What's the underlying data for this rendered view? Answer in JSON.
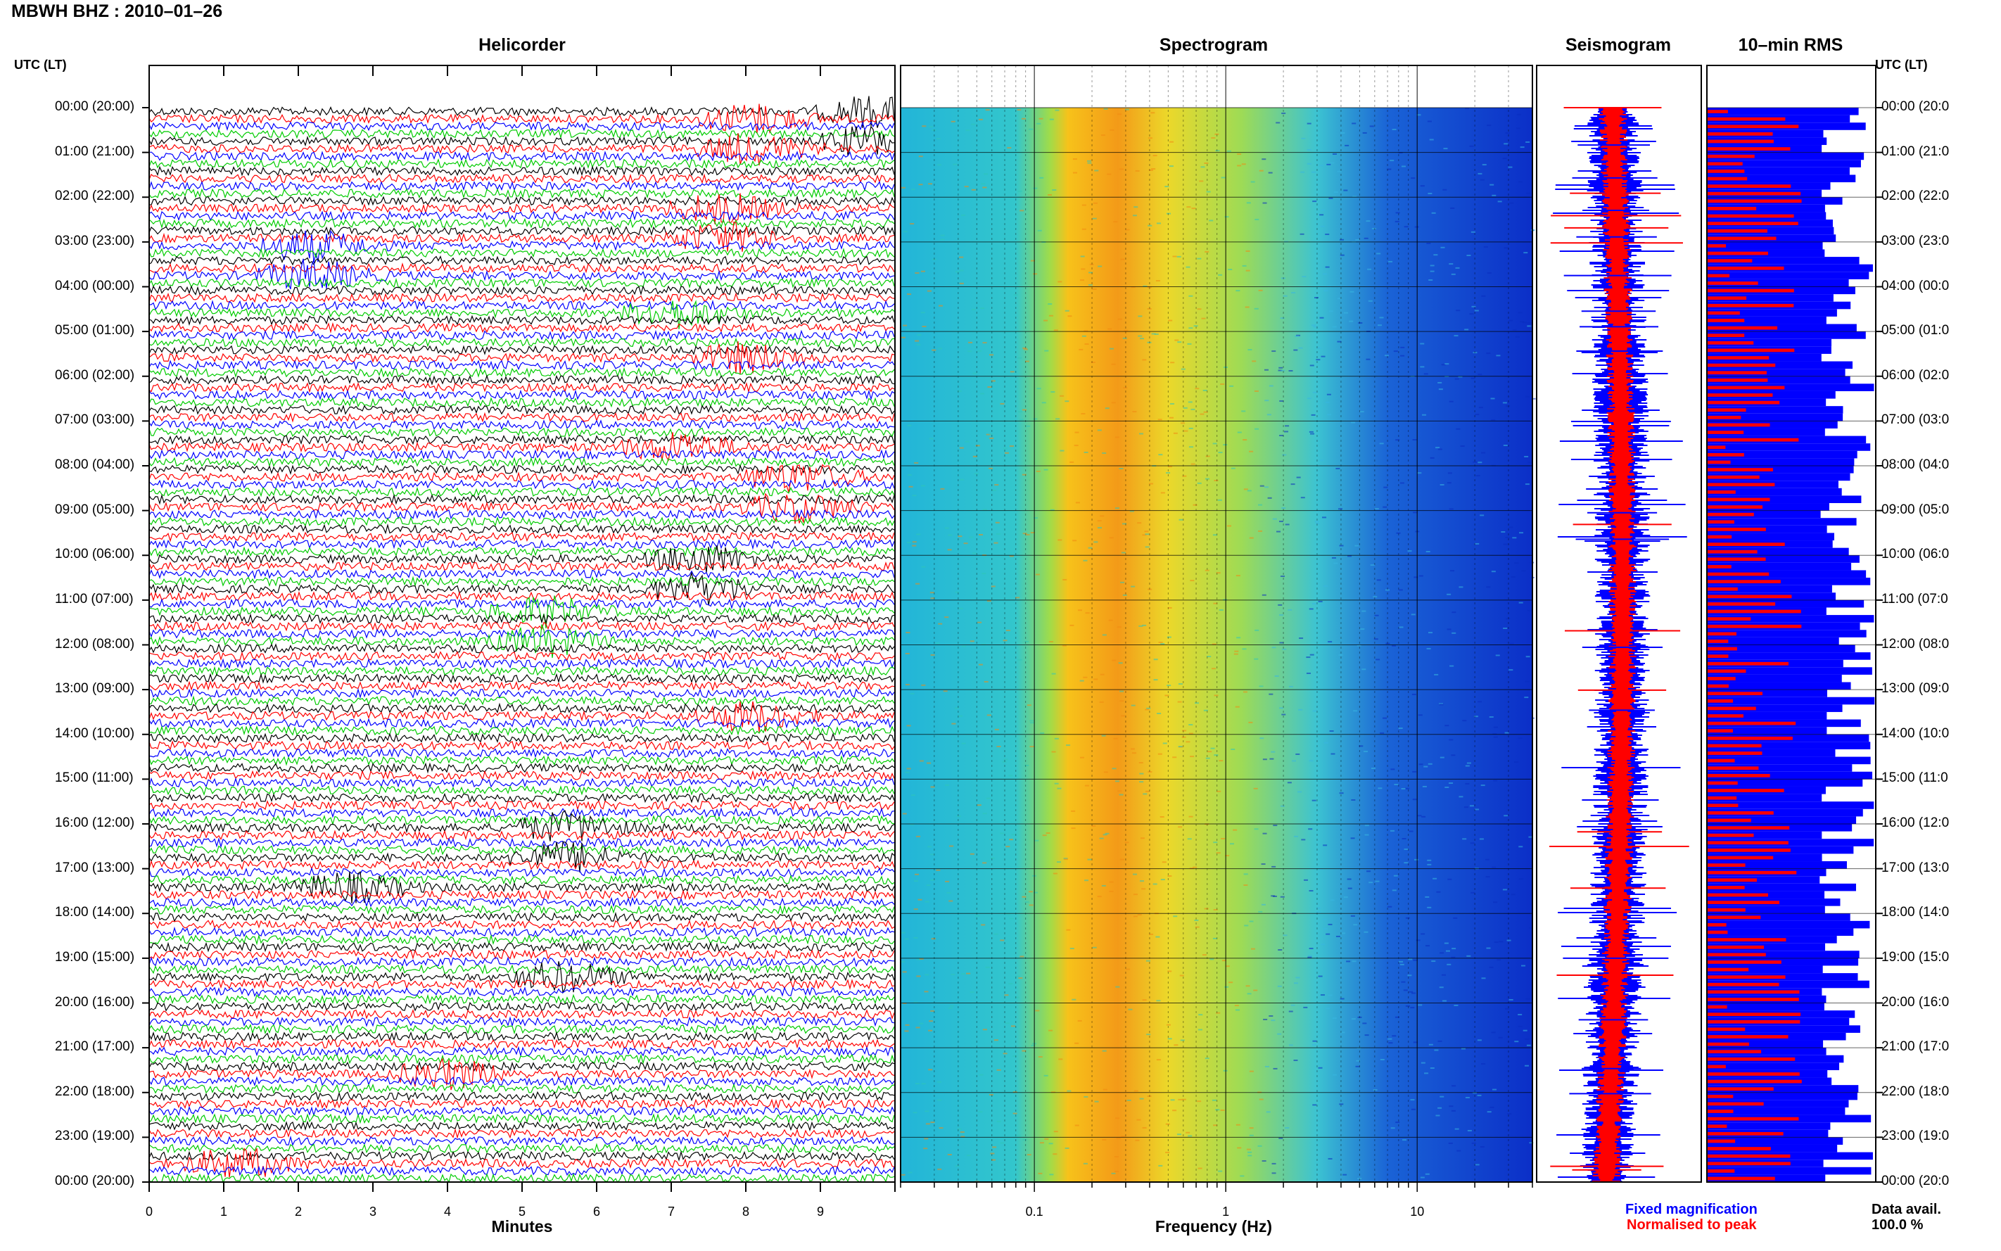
{
  "title": "MBWH BHZ : 2010–01–26",
  "panels": {
    "helicorder": "Helicorder",
    "spectrogram": "Spectrogram",
    "seismogram": "Seismogram",
    "rms": "10–min RMS"
  },
  "time_header_left": "UTC (LT)",
  "time_header_right": "UTC (LT)",
  "time_labels": [
    "00:00 (20:00)",
    "01:00 (21:00)",
    "02:00 (22:00)",
    "03:00 (23:00)",
    "04:00 (00:00)",
    "05:00 (01:00)",
    "06:00 (02:00)",
    "07:00 (03:00)",
    "08:00 (04:00)",
    "09:00 (05:00)",
    "10:00 (06:00)",
    "11:00 (07:00)",
    "12:00 (08:00)",
    "13:00 (09:00)",
    "14:00 (10:00)",
    "15:00 (11:00)",
    "16:00 (12:00)",
    "17:00 (13:00)",
    "18:00 (14:00)",
    "19:00 (15:00)",
    "20:00 (16:00)",
    "21:00 (17:00)",
    "22:00 (18:00)",
    "23:00 (19:00)",
    "00:00 (20:00)"
  ],
  "time_labels_right": [
    "00:00 (20:0",
    "01:00 (21:0",
    "02:00 (22:0",
    "03:00 (23:0",
    "04:00 (00:0",
    "05:00 (01:0",
    "06:00 (02:0",
    "07:00 (03:0",
    "08:00 (04:0",
    "09:00 (05:0",
    "10:00 (06:0",
    "11:00 (07:0",
    "12:00 (08:0",
    "13:00 (09:0",
    "14:00 (10:0",
    "15:00 (11:0",
    "16:00 (12:0",
    "17:00 (13:0",
    "18:00 (14:0",
    "19:00 (15:0",
    "20:00 (16:0",
    "21:00 (17:0",
    "22:00 (18:0",
    "23:00 (19:0",
    "00:00 (20:0"
  ],
  "legend": {
    "fixed": "Fixed magnification",
    "normalised": "Normalised to peak",
    "avail_label": "Data avail.",
    "avail_value": "100.0 %"
  },
  "colors": {
    "trace_cycle": [
      "#000000",
      "#ff0000",
      "#0000ff",
      "#00cc00"
    ],
    "fixed": "#0000ff",
    "normalised": "#ff0000"
  },
  "chart_data": [
    {
      "type": "line",
      "panel": "helicorder",
      "xlabel": "Minutes",
      "x_ticks": [
        "0",
        "1",
        "2",
        "3",
        "4",
        "5",
        "6",
        "7",
        "8",
        "9"
      ],
      "xlim": [
        0,
        10
      ],
      "rows_per_hour": 6,
      "hours": 24,
      "events": [
        {
          "hour": 0,
          "minute": 7.7,
          "color": "red"
        },
        {
          "hour": 0,
          "minute": 9.3,
          "color": "black"
        },
        {
          "hour": 2,
          "minute": 7.3,
          "color": "red"
        },
        {
          "hour": 3,
          "minute": 1.8,
          "color": "blue"
        },
        {
          "hour": 4,
          "minute": 6.7,
          "color": "green"
        },
        {
          "hour": 5,
          "minute": 7.6,
          "color": "red"
        },
        {
          "hour": 7,
          "minute": 6.7,
          "color": "red"
        },
        {
          "hour": 8,
          "minute": 8.3,
          "color": "red"
        },
        {
          "hour": 10,
          "minute": 7.0,
          "color": "black"
        },
        {
          "hour": 11,
          "minute": 4.9,
          "color": "green"
        },
        {
          "hour": 13,
          "minute": 7.7,
          "color": "red"
        },
        {
          "hour": 16,
          "minute": 5.2,
          "color": "black"
        },
        {
          "hour": 17,
          "minute": 2.3,
          "color": "black"
        },
        {
          "hour": 19,
          "minute": 5.2,
          "color": "black"
        },
        {
          "hour": 21,
          "minute": 3.6,
          "color": "red"
        },
        {
          "hour": 23,
          "minute": 0.8,
          "color": "red"
        }
      ]
    },
    {
      "type": "heatmap",
      "panel": "spectrogram",
      "xlabel": "Frequency (Hz)",
      "x_scale": "log",
      "xlim": [
        0.02,
        40
      ],
      "x_ticks": [
        "0.1",
        "1",
        "10"
      ],
      "x_tick_values": [
        0.1,
        1,
        10
      ],
      "peak_band_hz": [
        0.15,
        0.5
      ]
    },
    {
      "type": "line",
      "panel": "seismogram",
      "series": [
        {
          "name": "Fixed magnification",
          "color": "#0000ff"
        },
        {
          "name": "Normalised to peak",
          "color": "#ff0000"
        }
      ]
    },
    {
      "type": "bar",
      "panel": "rms",
      "orientation": "horizontal",
      "interval_minutes": 10,
      "series": [
        {
          "name": "Fixed magnification",
          "color": "#0000ff"
        },
        {
          "name": "Normalised to peak",
          "color": "#ff0000"
        }
      ],
      "data_availability_percent": 100.0
    }
  ]
}
